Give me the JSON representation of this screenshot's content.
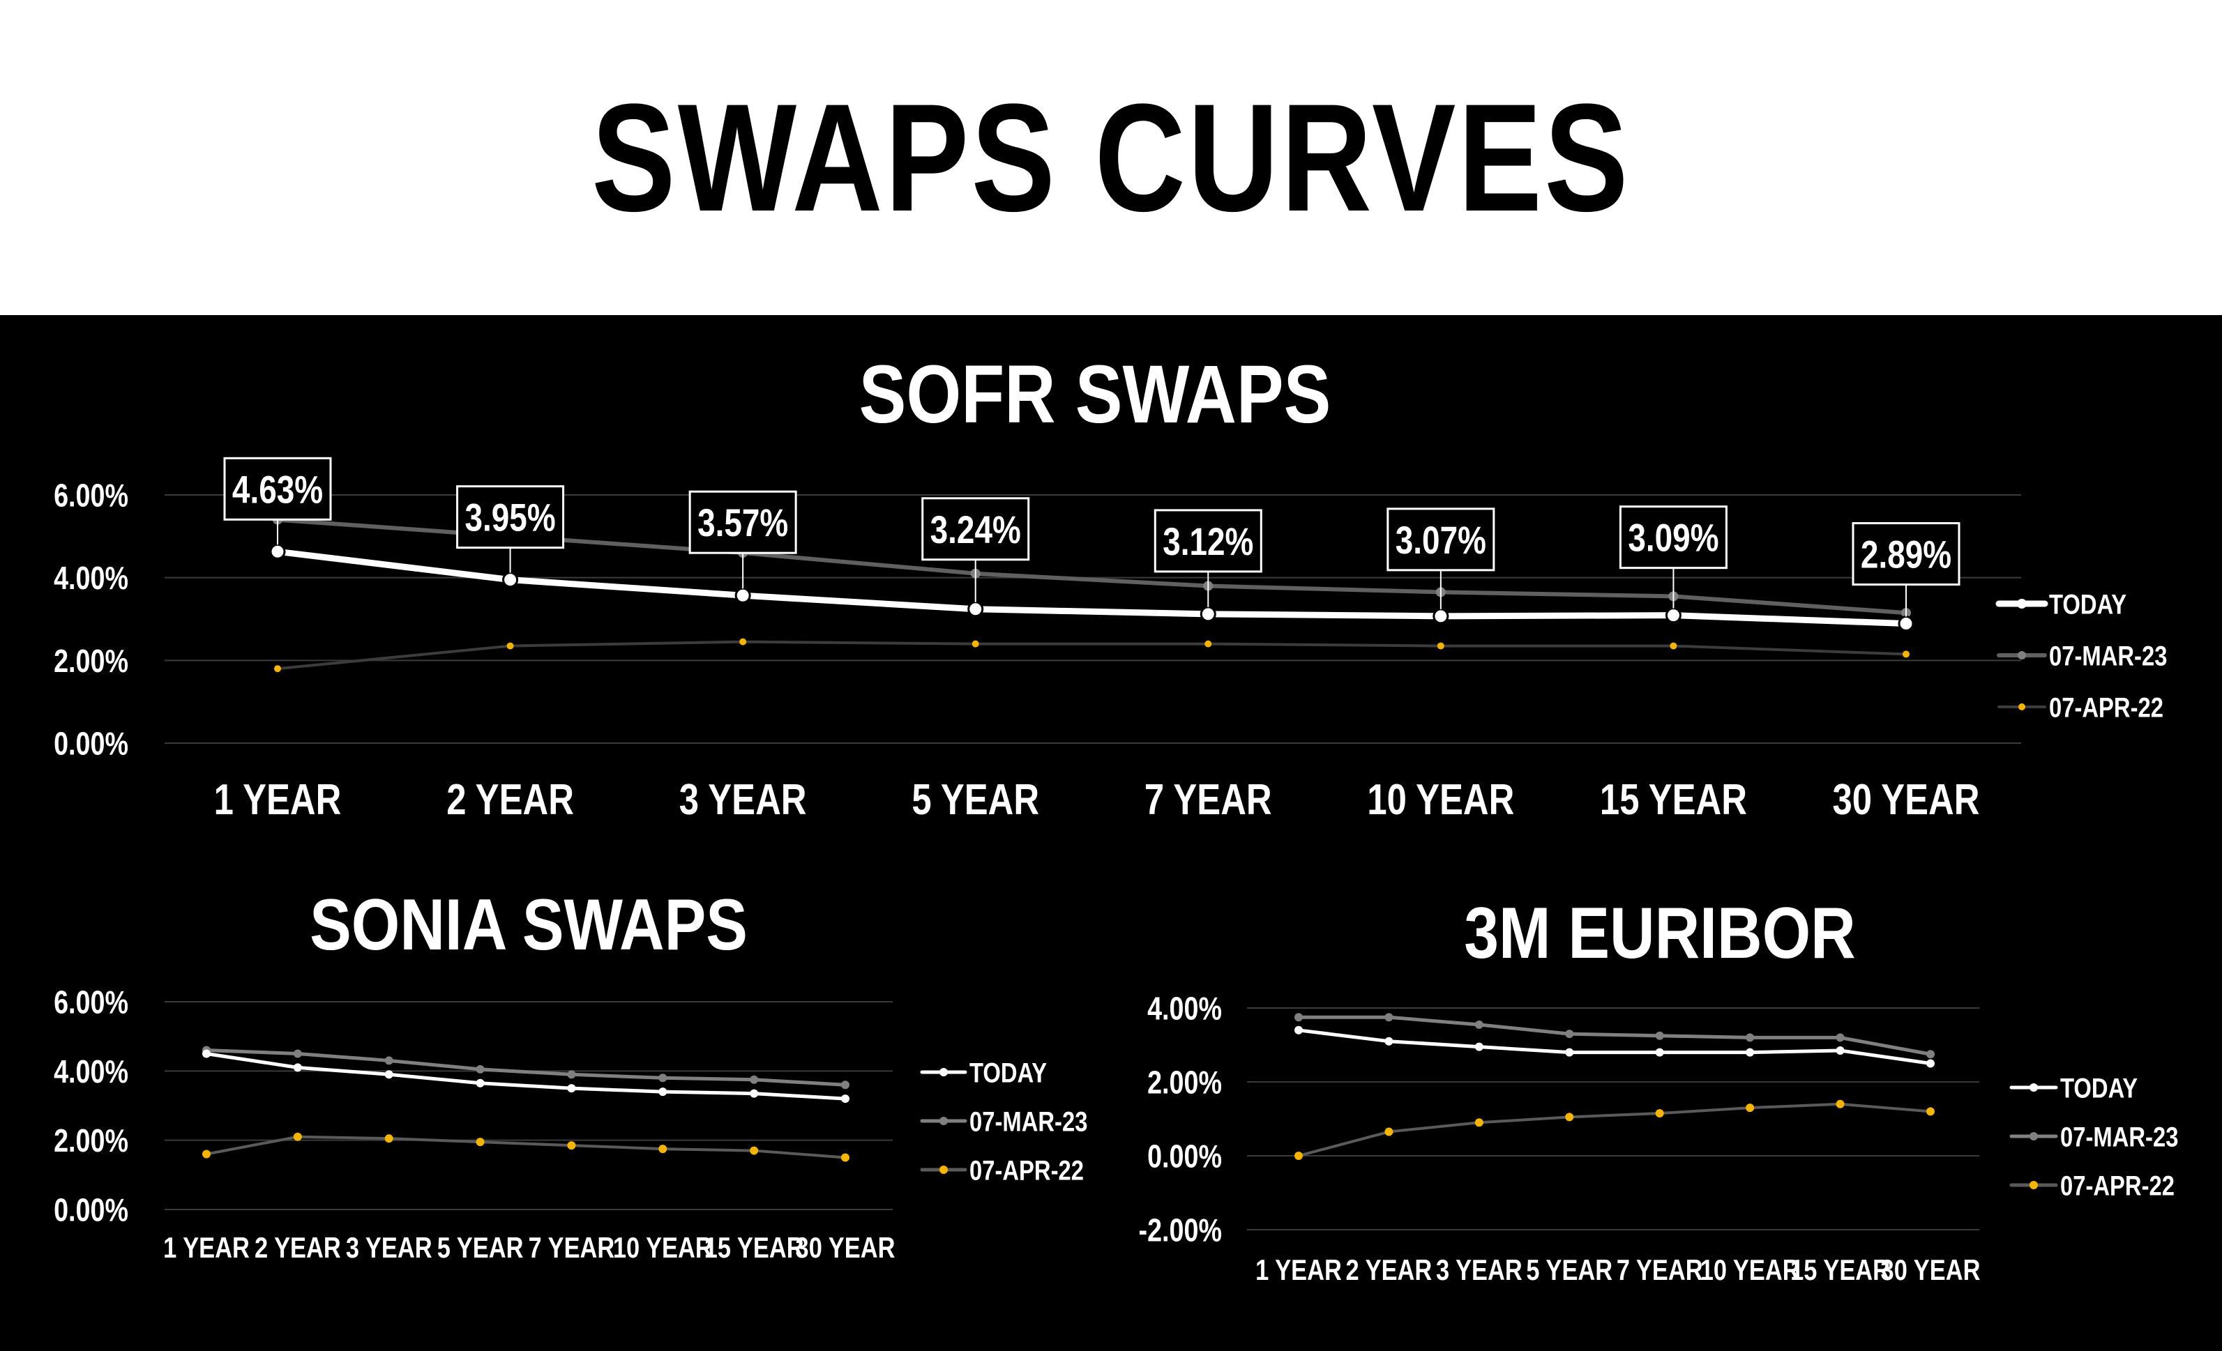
{
  "title": "SWAPS CURVES",
  "colors": {
    "today": "#ffffff",
    "mar23": "#808080",
    "apr22": "#f5b400",
    "background": "#000000",
    "grid": "#3a3a3a"
  },
  "chart_data": [
    {
      "type": "line",
      "title": "SOFR SWAPS",
      "categories": [
        "1 YEAR",
        "2 YEAR",
        "3 YEAR",
        "5 YEAR",
        "7 YEAR",
        "10 YEAR",
        "15 YEAR",
        "30 YEAR"
      ],
      "y_ticks": [
        "6.00%",
        "4.00%",
        "2.00%",
        "0.00%"
      ],
      "ylim": [
        0,
        6
      ],
      "grid": true,
      "legend": "right",
      "series": [
        {
          "name": "TODAY",
          "values": [
            4.63,
            3.95,
            3.57,
            3.24,
            3.12,
            3.07,
            3.09,
            2.89
          ],
          "labels": [
            "4.63%",
            "3.95%",
            "3.57%",
            "3.24%",
            "3.12%",
            "3.07%",
            "3.09%",
            "2.89%"
          ]
        },
        {
          "name": "07-MAR-23",
          "values": [
            5.4,
            5.0,
            4.6,
            4.1,
            3.8,
            3.65,
            3.55,
            3.15
          ]
        },
        {
          "name": "07-APR-22",
          "values": [
            1.8,
            2.35,
            2.45,
            2.4,
            2.4,
            2.35,
            2.35,
            2.15
          ]
        }
      ]
    },
    {
      "type": "line",
      "title": "SONIA SWAPS",
      "categories": [
        "1 YEAR",
        "2 YEAR",
        "3 YEAR",
        "5 YEAR",
        "7 YEAR",
        "10 YEAR",
        "15 YEAR",
        "30 YEAR"
      ],
      "y_ticks": [
        "6.00%",
        "4.00%",
        "2.00%",
        "0.00%"
      ],
      "ylim": [
        0,
        6
      ],
      "grid": true,
      "legend": "right",
      "series": [
        {
          "name": "TODAY",
          "values": [
            4.5,
            4.1,
            3.9,
            3.65,
            3.5,
            3.4,
            3.35,
            3.2
          ]
        },
        {
          "name": "07-MAR-23",
          "values": [
            4.6,
            4.5,
            4.3,
            4.05,
            3.9,
            3.8,
            3.75,
            3.6
          ]
        },
        {
          "name": "07-APR-22",
          "values": [
            1.6,
            2.1,
            2.05,
            1.95,
            1.85,
            1.75,
            1.7,
            1.5
          ]
        }
      ]
    },
    {
      "type": "line",
      "title": "3M EURIBOR",
      "categories": [
        "1 YEAR",
        "2 YEAR",
        "3 YEAR",
        "5 YEAR",
        "7 YEAR",
        "10 YEAR",
        "15 YEAR",
        "30 YEAR"
      ],
      "y_ticks": [
        "4.00%",
        "2.00%",
        "0.00%",
        "-2.00%"
      ],
      "ylim": [
        -2,
        4
      ],
      "grid": true,
      "legend": "right",
      "series": [
        {
          "name": "TODAY",
          "values": [
            3.4,
            3.1,
            2.95,
            2.8,
            2.8,
            2.8,
            2.85,
            2.5
          ]
        },
        {
          "name": "07-MAR-23",
          "values": [
            3.75,
            3.75,
            3.55,
            3.3,
            3.25,
            3.2,
            3.2,
            2.75
          ]
        },
        {
          "name": "07-APR-22",
          "values": [
            0.0,
            0.65,
            0.9,
            1.05,
            1.15,
            1.3,
            1.4,
            1.2
          ]
        }
      ]
    }
  ]
}
